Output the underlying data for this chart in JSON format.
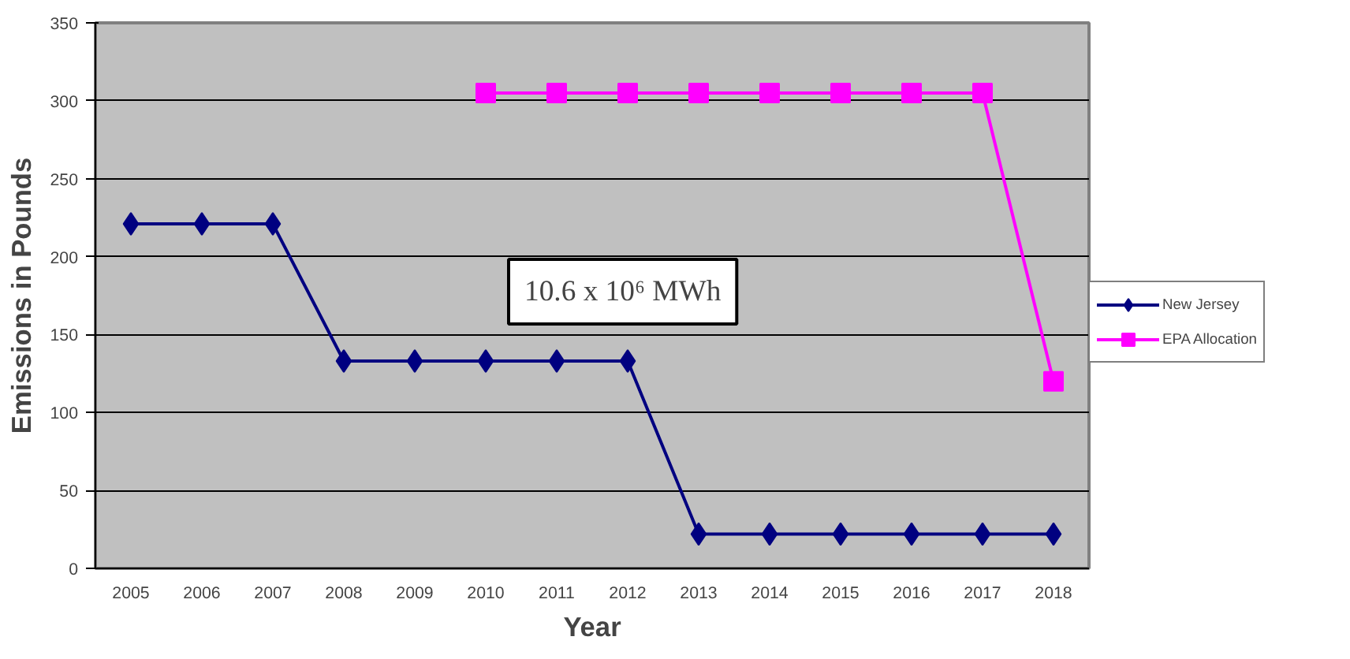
{
  "chart_data": {
    "type": "line",
    "categories": [
      "2005",
      "2006",
      "2007",
      "2008",
      "2009",
      "2010",
      "2011",
      "2012",
      "2013",
      "2014",
      "2015",
      "2016",
      "2017",
      "2018"
    ],
    "series": [
      {
        "name": "New Jersey",
        "color": "#000080",
        "marker": "diamond",
        "values": [
          221,
          221,
          221,
          133,
          133,
          133,
          133,
          133,
          22,
          22,
          22,
          22,
          22,
          22
        ]
      },
      {
        "name": "EPA Allocation",
        "color": "#ff00ff",
        "marker": "square",
        "values": [
          null,
          null,
          null,
          null,
          null,
          305,
          305,
          305,
          305,
          305,
          305,
          305,
          305,
          120
        ]
      }
    ],
    "xlabel": "Year",
    "ylabel": "Emissions in Pounds",
    "ylim": [
      0,
      350
    ],
    "yticks": [
      0,
      50,
      100,
      150,
      200,
      250,
      300,
      350
    ],
    "grid": "y",
    "legend": "right",
    "annotations": [
      "10.6 x 10⁶ MWh"
    ]
  }
}
